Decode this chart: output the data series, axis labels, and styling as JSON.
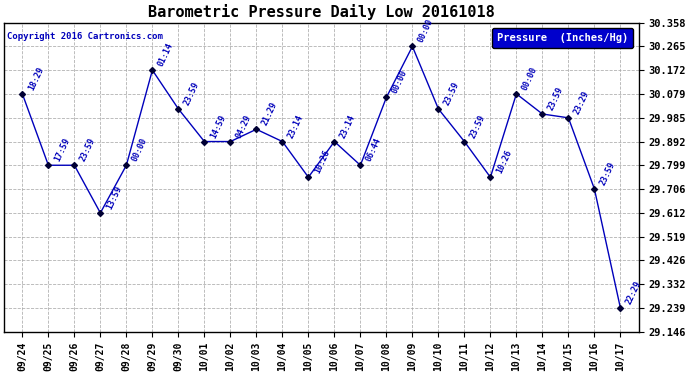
{
  "title": "Barometric Pressure Daily Low 20161018",
  "copyright": "Copyright 2016 Cartronics.com",
  "legend_label": "Pressure  (Inches/Hg)",
  "x_labels": [
    "09/24",
    "09/25",
    "09/26",
    "09/27",
    "09/28",
    "09/29",
    "09/30",
    "10/01",
    "10/02",
    "10/03",
    "10/04",
    "10/05",
    "10/06",
    "10/07",
    "10/08",
    "10/09",
    "10/10",
    "10/11",
    "10/12",
    "10/13",
    "10/14",
    "10/15",
    "10/16",
    "10/17"
  ],
  "y_data": [
    30.079,
    29.799,
    29.799,
    29.612,
    29.799,
    30.172,
    30.02,
    29.892,
    29.892,
    29.94,
    29.892,
    29.752,
    29.892,
    29.799,
    30.065,
    30.265,
    30.02,
    29.892,
    29.752,
    30.079,
    30.0,
    29.985,
    29.706,
    29.239
  ],
  "annotations": [
    "18:29",
    "17:59",
    "23:59",
    "13:59",
    "00:00",
    "01:14",
    "23:59",
    "14:59",
    "04:29",
    "21:29",
    "23:14",
    "10:26",
    "23:14",
    "06:44",
    "00:00",
    "00:00",
    "23:59",
    "23:59",
    "10:26",
    "00:00",
    "23:59",
    "23:29",
    "23:59",
    "22:29"
  ],
  "ylim_min": 29.146,
  "ylim_max": 30.358,
  "y_ticks": [
    29.146,
    29.239,
    29.332,
    29.426,
    29.519,
    29.612,
    29.706,
    29.799,
    29.892,
    29.985,
    30.079,
    30.172,
    30.265,
    30.358
  ],
  "line_color": "#0000bb",
  "marker_color": "#000033",
  "bg_color": "#ffffff",
  "grid_color": "#aaaaaa",
  "title_color": "#000000",
  "annotation_color": "#0000bb",
  "copyright_color": "#0000bb",
  "legend_bg": "#0000cc",
  "legend_text_color": "#ffffff"
}
